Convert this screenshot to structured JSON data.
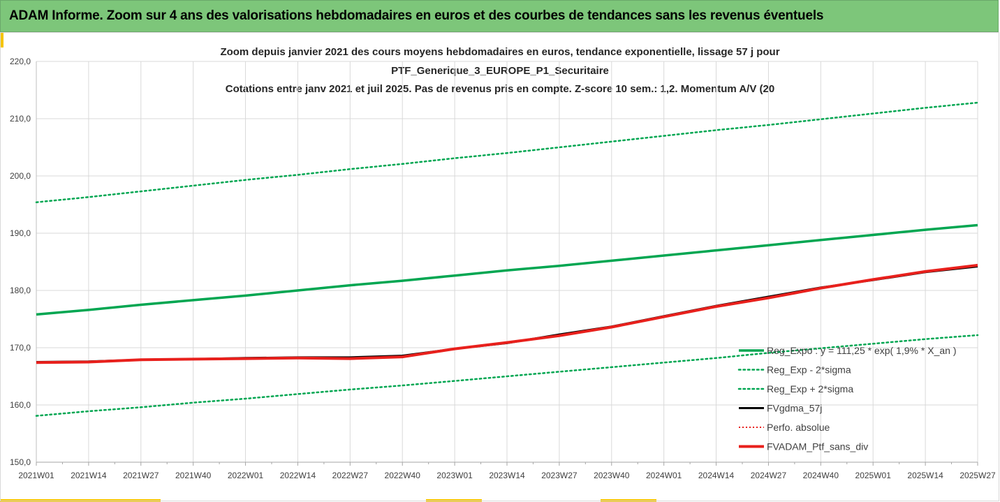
{
  "banner": {
    "title": "ADAM Informe. Zoom sur 4 ans des valorisations hebdomadaires en euros et des courbes de tendances sans les revenus éventuels"
  },
  "colors": {
    "banner_bg": "#7dc67a",
    "accent": "#f5c400",
    "trend_green": "#00a651",
    "black": "#000000",
    "red": "#e8201c"
  },
  "chart_data": {
    "type": "line",
    "title_lines": [
      "Zoom depuis janvier 2021 des cours moyens hebdomadaires  en euros, tendance exponentielle, lissage 57 j pour",
      "PTF_Generique_3_EUROPE_P1_Securitaire",
      "Cotations entre janv 2021 et juil 2025. Pas de revenus pris en compte. Z-score 10 sem.: 1,2. Momentum A/V (20"
    ],
    "x_tick_labels": [
      "2021W01",
      "2021W14",
      "2021W27",
      "2021W40",
      "2022W01",
      "2022W14",
      "2022W27",
      "2022W40",
      "2023W01",
      "2023W14",
      "2023W27",
      "2023W40",
      "2024W01",
      "2024W14",
      "2024W27",
      "2024W40",
      "2025W01",
      "2025W14",
      "2025W27"
    ],
    "y_tick_labels": [
      "150,0",
      "160,0",
      "170,0",
      "180,0",
      "190,0",
      "200,0",
      "210,0",
      "220,0"
    ],
    "ylim": [
      150,
      220
    ],
    "grid": true,
    "legend_position": "bottom-right",
    "series": [
      {
        "name": "Reg_Expo : y = 111,25 * exp( 1,9% *  X_an )",
        "style": "solid-green",
        "values": [
          175.8,
          176.6,
          177.5,
          178.3,
          179.1,
          180.0,
          180.9,
          181.7,
          182.6,
          183.5,
          184.3,
          185.2,
          186.1,
          187.0,
          187.9,
          188.8,
          189.7,
          190.6,
          191.4
        ]
      },
      {
        "name": "Reg_Exp - 2*sigma",
        "style": "dotted-green",
        "values": [
          158.1,
          158.9,
          159.6,
          160.4,
          161.1,
          161.9,
          162.7,
          163.4,
          164.2,
          165.0,
          165.8,
          166.6,
          167.4,
          168.2,
          169.1,
          169.9,
          170.7,
          171.5,
          172.2
        ]
      },
      {
        "name": "Reg_Exp + 2*sigma",
        "style": "dotted-green",
        "values": [
          195.4,
          196.3,
          197.3,
          198.3,
          199.3,
          200.2,
          201.2,
          202.1,
          203.1,
          204.0,
          205.0,
          206.0,
          207.0,
          208.0,
          208.9,
          209.9,
          210.9,
          211.9,
          212.8
        ]
      },
      {
        "name": "FVgdma_57j",
        "style": "solid-black",
        "values": [
          167.5,
          167.6,
          167.9,
          168.0,
          168.2,
          168.3,
          168.3,
          168.6,
          169.8,
          170.8,
          172.3,
          173.7,
          175.5,
          177.3,
          178.9,
          180.5,
          181.8,
          183.2,
          184.2
        ]
      },
      {
        "name": "Perfo. absolue",
        "style": "dotted-red",
        "values": [
          167.5,
          167.6,
          167.9,
          168.0,
          168.2,
          168.3,
          168.3,
          168.6,
          169.8,
          170.8,
          172.3,
          173.7,
          175.5,
          177.3,
          178.9,
          180.5,
          181.8,
          183.2,
          184.2
        ]
      },
      {
        "name": "FVADAM_Ptf_sans_div",
        "style": "thick-red",
        "values": [
          167.4,
          167.5,
          167.9,
          168.0,
          168.1,
          168.2,
          168.1,
          168.4,
          169.8,
          170.9,
          172.1,
          173.6,
          175.4,
          177.2,
          178.7,
          180.4,
          181.9,
          183.3,
          184.4
        ]
      }
    ]
  }
}
